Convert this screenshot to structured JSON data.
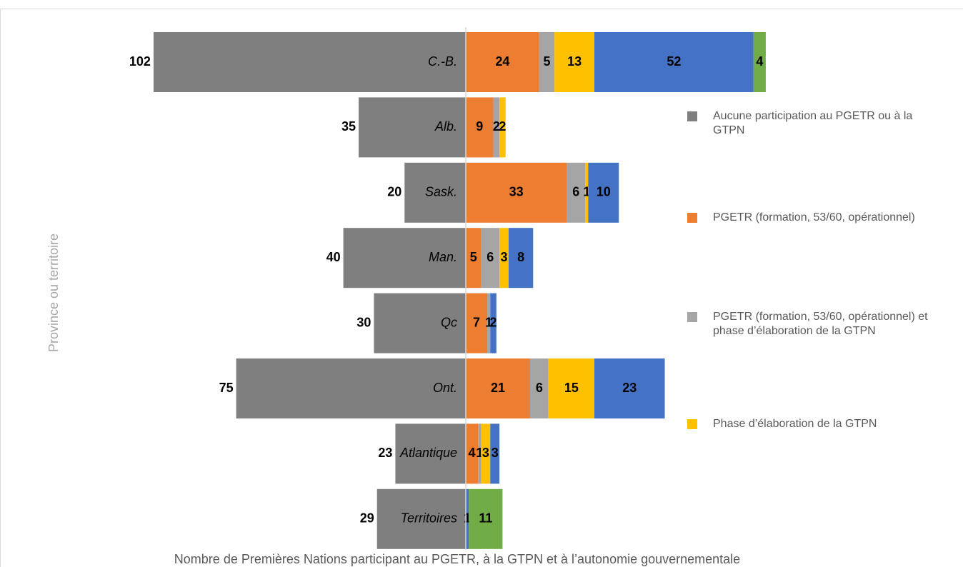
{
  "chart_data": {
    "type": "bar",
    "title": "Nombre de Premières Nations participant au PGETR, à la GTPN et à l’autonomie gouvernementale",
    "y_label": "Province ou territoire",
    "categories": [
      "C.-B.",
      "Alb.",
      "Sask.",
      "Man.",
      "Qc",
      "Ont.",
      "Atlantique",
      "Territoires"
    ],
    "series": [
      {
        "name": "Aucune participation au PGETR ou à la GTPN",
        "color": "#7f7f7f",
        "values": [
          102,
          35,
          20,
          40,
          30,
          75,
          23,
          29
        ]
      },
      {
        "name": "PGETR (formation, 53/60, opérationnel)",
        "color": "#ed7d31",
        "values": [
          24,
          9,
          33,
          5,
          7,
          21,
          4,
          null
        ]
      },
      {
        "name": "PGETR (formation, 53/60, opérationnel) et phase d’élaboration de la GTPN",
        "color": "#a5a5a5",
        "values": [
          5,
          2,
          6,
          6,
          1,
          6,
          1,
          null
        ]
      },
      {
        "name": "Phase d’élaboration de la GTPN",
        "color": "#ffc000",
        "values": [
          13,
          2,
          1,
          3,
          null,
          15,
          3,
          null
        ]
      },
      {
        "color": "#4472c4",
        "values": [
          52,
          null,
          10,
          8,
          2,
          23,
          3,
          1
        ]
      },
      {
        "color": "#70ad47",
        "values": [
          4,
          null,
          null,
          null,
          null,
          null,
          null,
          11
        ]
      }
    ]
  }
}
